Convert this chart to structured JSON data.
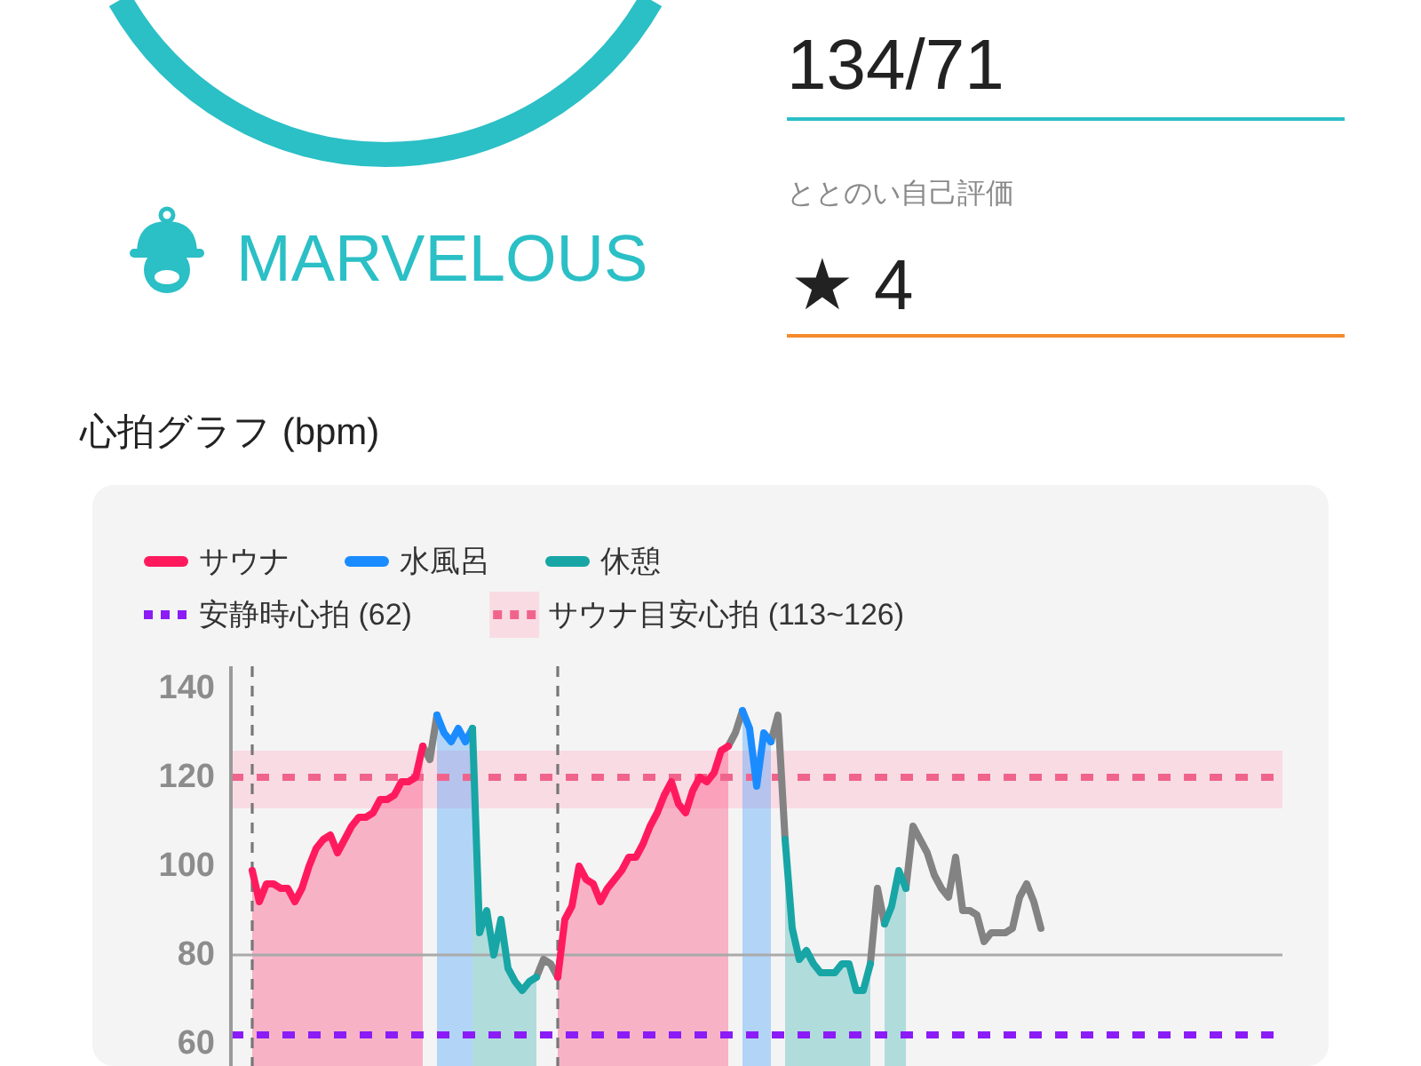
{
  "chart_data": [
    {
      "type": "other",
      "annotations": [
        "MARVELOUS",
        "134/71",
        "ととのい自己評価",
        "★ 4"
      ]
    },
    {
      "type": "area",
      "title": "心拍グラフ (bpm)",
      "categories": [
        null,
        null,
        null,
        null,
        null,
        null,
        null,
        null,
        null,
        null,
        null,
        null,
        null,
        null,
        null,
        null,
        null,
        null,
        null,
        null,
        null,
        null,
        null,
        null,
        null,
        null,
        null,
        null,
        null,
        null,
        null,
        null,
        null,
        null,
        null,
        null,
        null,
        null,
        null,
        null,
        null,
        null,
        null,
        null,
        null,
        null,
        null,
        null,
        null,
        null,
        null,
        null,
        null,
        null,
        null,
        null,
        null,
        null,
        null,
        null,
        null,
        null,
        null,
        null,
        null,
        null,
        null,
        null,
        null,
        null,
        null,
        null,
        null,
        null,
        null,
        null,
        null,
        null,
        null,
        null,
        null,
        null,
        null,
        null,
        null,
        null,
        null,
        null,
        null,
        null,
        null,
        null,
        null,
        null,
        null,
        null,
        null,
        null,
        null,
        null,
        null,
        null,
        null,
        null,
        null,
        null,
        null,
        null,
        null,
        null,
        null,
        null,
        null,
        null,
        null,
        null,
        null,
        null,
        null,
        null,
        null,
        null,
        null,
        null,
        null,
        null,
        null,
        null,
        null,
        null,
        null,
        null,
        null,
        null,
        null,
        null,
        null,
        null,
        null,
        null,
        null,
        null,
        null,
        null,
        null,
        null,
        null,
        null,
        null
      ],
      "series": [
        {
          "name": "サウナ",
          "color": "#ff1a5e",
          "values": [
            null,
            null,
            null,
            99,
            92,
            96,
            96,
            95,
            95,
            92,
            95,
            100,
            104,
            106,
            107,
            103,
            106,
            109,
            111,
            111,
            112,
            115,
            115,
            116,
            119,
            119,
            120,
            127,
            null,
            null,
            null,
            null,
            null,
            null,
            null,
            null,
            null,
            null,
            null,
            null,
            null,
            null,
            null,
            null,
            null,
            null,
            75,
            88,
            91,
            100,
            97,
            96,
            92,
            95,
            97,
            99,
            102,
            102,
            105,
            109,
            112,
            116,
            119,
            114,
            112,
            117,
            120,
            119,
            121,
            126,
            127,
            null,
            null,
            null,
            null,
            null,
            null,
            null,
            null,
            null,
            null,
            null,
            null,
            null,
            null,
            null,
            null,
            null,
            null,
            null,
            null,
            null,
            null,
            null,
            null,
            null,
            null,
            null,
            null,
            null,
            null,
            null,
            null,
            null,
            null,
            null,
            null,
            null,
            null,
            null,
            null,
            null,
            null,
            null,
            null,
            null,
            null,
            null,
            null,
            null,
            null,
            null,
            null,
            null,
            null,
            null,
            null,
            null,
            null,
            null,
            null,
            null,
            null,
            null,
            null,
            null,
            null,
            null,
            null,
            null,
            null,
            null,
            null,
            null,
            null,
            null,
            null,
            null,
            null
          ]
        },
        {
          "name": "水風呂",
          "color": "#1a8cff",
          "values": [
            null,
            null,
            null,
            null,
            null,
            null,
            null,
            null,
            null,
            null,
            null,
            null,
            null,
            null,
            null,
            null,
            null,
            null,
            null,
            null,
            null,
            null,
            null,
            null,
            null,
            null,
            null,
            null,
            null,
            134,
            130,
            128,
            131,
            128,
            131,
            null,
            null,
            null,
            null,
            null,
            null,
            null,
            null,
            null,
            null,
            null,
            null,
            null,
            null,
            null,
            null,
            null,
            null,
            null,
            null,
            null,
            null,
            null,
            null,
            null,
            null,
            null,
            null,
            null,
            null,
            null,
            null,
            null,
            null,
            null,
            null,
            null,
            135,
            131,
            118,
            130,
            128,
            null,
            null,
            null,
            null,
            null,
            null,
            null,
            null,
            null,
            null,
            null,
            null,
            null,
            null,
            null,
            null,
            null,
            null,
            null,
            null,
            null,
            null,
            null,
            null,
            null,
            null,
            null,
            null,
            null,
            null,
            null,
            null,
            null,
            null,
            null,
            null,
            null,
            null,
            null,
            null,
            null,
            null,
            null,
            null,
            null,
            null,
            null,
            null,
            null,
            null,
            null,
            null,
            null,
            null,
            null,
            null,
            null,
            null,
            null,
            null,
            null,
            null,
            null,
            null,
            null,
            null,
            null,
            null,
            null,
            null,
            null,
            null
          ]
        },
        {
          "name": "休憩",
          "color": "#18a5a5",
          "values": [
            null,
            null,
            null,
            null,
            null,
            null,
            null,
            null,
            null,
            null,
            null,
            null,
            null,
            null,
            null,
            null,
            null,
            null,
            null,
            null,
            null,
            null,
            null,
            null,
            null,
            null,
            null,
            null,
            null,
            null,
            null,
            null,
            null,
            null,
            131,
            85,
            90,
            80,
            88,
            77,
            74,
            72,
            74,
            75,
            null,
            null,
            null,
            null,
            null,
            null,
            null,
            null,
            null,
            null,
            null,
            null,
            null,
            null,
            null,
            null,
            null,
            null,
            null,
            null,
            null,
            null,
            null,
            null,
            null,
            null,
            null,
            null,
            null,
            null,
            null,
            null,
            null,
            null,
            106,
            86,
            79,
            81,
            78,
            76,
            76,
            76,
            78,
            78,
            72,
            72,
            78,
            null,
            87,
            91,
            99,
            95,
            null,
            null,
            null,
            null,
            null,
            null,
            null,
            null,
            null,
            null,
            null,
            null,
            null,
            null,
            null,
            null,
            null,
            null,
            null,
            null,
            null,
            null,
            null,
            null,
            null,
            null,
            null,
            null,
            null,
            null,
            null,
            null,
            null,
            null,
            null,
            null,
            null,
            null,
            null,
            null,
            null,
            null,
            null,
            null,
            null,
            null,
            null,
            null,
            null,
            null,
            null,
            null,
            null
          ]
        },
        {
          "type": "line",
          "color": "#838383",
          "values": [
            null,
            null,
            null,
            null,
            null,
            null,
            null,
            null,
            null,
            null,
            null,
            null,
            null,
            null,
            null,
            null,
            null,
            null,
            null,
            null,
            null,
            null,
            null,
            null,
            null,
            null,
            null,
            127,
            124,
            134,
            null,
            null,
            null,
            null,
            null,
            null,
            null,
            null,
            null,
            null,
            null,
            null,
            null,
            75,
            79,
            78,
            75,
            null,
            null,
            null,
            null,
            null,
            null,
            null,
            null,
            null,
            null,
            null,
            null,
            null,
            null,
            null,
            null,
            null,
            null,
            null,
            null,
            null,
            null,
            null,
            127,
            130,
            135,
            null,
            null,
            null,
            128,
            134,
            106,
            null,
            null,
            null,
            null,
            null,
            null,
            null,
            null,
            null,
            null,
            null,
            78,
            95,
            87,
            null,
            null,
            95,
            109,
            106,
            103,
            98,
            95,
            93,
            102,
            90,
            90,
            89,
            83,
            85,
            85,
            85,
            86,
            93,
            96,
            92,
            86,
            null,
            null,
            null,
            null,
            null,
            null,
            null,
            null,
            null,
            null,
            null,
            null,
            null,
            null,
            null,
            null,
            null,
            null,
            null,
            null,
            null,
            null,
            null,
            null,
            null,
            null,
            null,
            null,
            null,
            null,
            null,
            null,
            null,
            null
          ]
        }
      ],
      "ylim": [
        55,
        145
      ],
      "yticks": [
        60,
        80,
        100,
        120,
        140
      ],
      "tick_labels": "y",
      "legend": "top",
      "ref_lines": [
        {
          "axis": "y",
          "value": 80,
          "color": "#aaaaaa"
        },
        {
          "axis": "y",
          "value": 62,
          "label": "安静時心拍 (62)",
          "color": "#8b1cf7",
          "line_style": "dotted"
        },
        {
          "axis": "y",
          "value": 120,
          "color": "#f0648c",
          "line_style": "dotted"
        }
      ],
      "bands": [
        {
          "axis": "y",
          "from": 113,
          "to": 126,
          "color": "#f9dbe4",
          "label": "サウナ目安心拍 (113~126)"
        }
      ]
    }
  ]
}
